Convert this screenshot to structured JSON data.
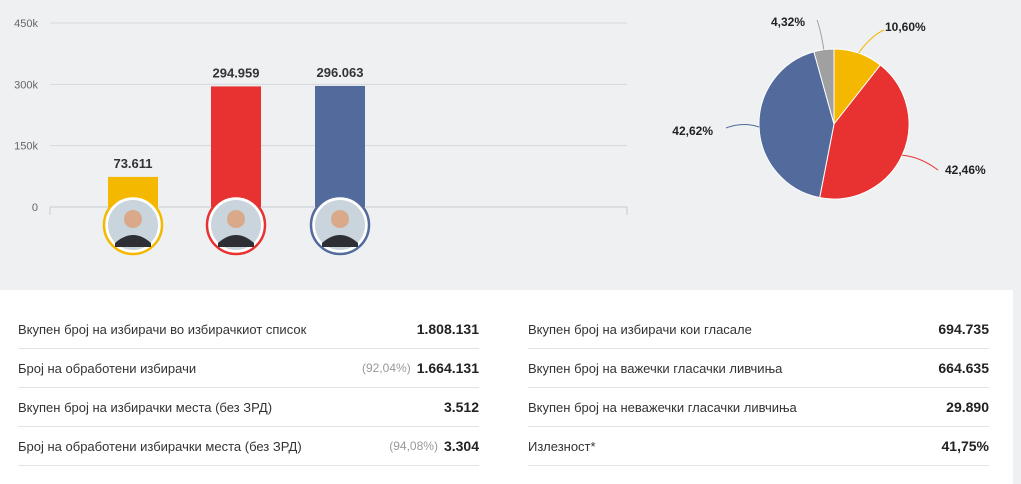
{
  "chart_data": [
    {
      "type": "bar",
      "categories": [
        "",
        "",
        ""
      ],
      "values": [
        73611,
        294959,
        296063
      ],
      "value_labels": [
        "73.611",
        "294.959",
        "296.063"
      ],
      "colors": [
        "#f5b800",
        "#e83232",
        "#526a9c"
      ],
      "y_ticks": [
        "0",
        "150k",
        "300k",
        "450k"
      ],
      "y_tick_values": [
        0,
        150000,
        300000,
        450000
      ],
      "ylim": [
        0,
        450000
      ],
      "grid": true
    },
    {
      "type": "pie",
      "slices": [
        {
          "label": "10,60%",
          "value": 10.6,
          "color": "#f5b800"
        },
        {
          "label": "42,46%",
          "value": 42.46,
          "color": "#e83232"
        },
        {
          "label": "42,62%",
          "value": 42.62,
          "color": "#526a9c"
        },
        {
          "label": "4,32%",
          "value": 4.32,
          "color": "#a0a0a0"
        }
      ]
    }
  ],
  "stats": {
    "left": [
      {
        "label": "Вкупен број на избирачи во избирачкиот список",
        "pct": "",
        "value": "1.808.131"
      },
      {
        "label": "Број на обработени избирачи",
        "pct": "(92,04%)",
        "value": "1.664.131"
      },
      {
        "label": "Вкупен број на избирачки места (без ЗРД)",
        "pct": "",
        "value": "3.512"
      },
      {
        "label": "Број на обработени избирачки места (без ЗРД)",
        "pct": "(94,08%)",
        "value": "3.304"
      }
    ],
    "right": [
      {
        "label": "Вкупен број на избирачи кои гласале",
        "pct": "",
        "value": "694.735"
      },
      {
        "label": "Вкупен број на важечки гласачки ливчиња",
        "pct": "",
        "value": "664.635"
      },
      {
        "label": "Вкупен број на неважечки гласачки ливчиња",
        "pct": "",
        "value": "29.890"
      },
      {
        "label": "Излезност*",
        "pct": "",
        "value": "41,75%"
      }
    ]
  }
}
